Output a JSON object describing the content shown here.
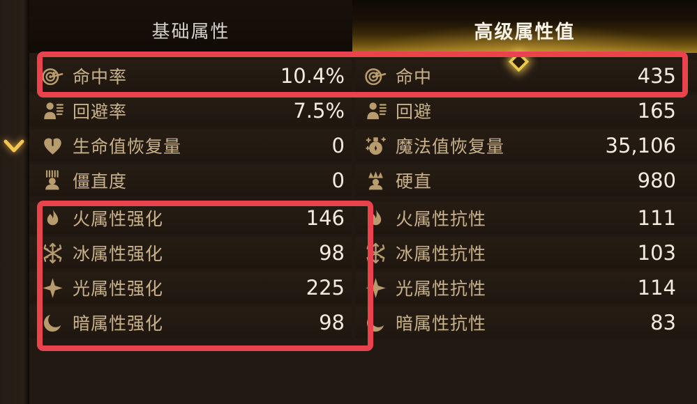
{
  "tabs": [
    {
      "label": "基础属性",
      "selected": false
    },
    {
      "label": "高级属性值",
      "selected": true
    }
  ],
  "stats_left": [
    {
      "icon": "target-icon",
      "label": "命中率",
      "value": "10.4%"
    },
    {
      "icon": "evasion-icon",
      "label": "回避率",
      "value": "7.5%"
    },
    {
      "icon": "heart-icon",
      "label": "生命值恢复量",
      "value": "0"
    },
    {
      "icon": "stun-icon",
      "label": "僵直度",
      "value": "0"
    },
    {
      "icon": "fire-icon",
      "label": "火属性强化",
      "value": "146"
    },
    {
      "icon": "snowflake-icon",
      "label": "冰属性强化",
      "value": "98"
    },
    {
      "icon": "light-star-icon",
      "label": "光属性强化",
      "value": "225"
    },
    {
      "icon": "moon-icon",
      "label": "暗属性强化",
      "value": "98"
    }
  ],
  "stats_right": [
    {
      "icon": "target-icon",
      "label": "命中",
      "value": "435"
    },
    {
      "icon": "evasion-icon",
      "label": "回避",
      "value": "165"
    },
    {
      "icon": "potion-icon",
      "label": "魔法值恢复量",
      "value": "35,106"
    },
    {
      "icon": "rigidity-icon",
      "label": "硬直",
      "value": "980"
    },
    {
      "icon": "fire-icon",
      "label": "火属性抗性",
      "value": "111"
    },
    {
      "icon": "snowflake-icon",
      "label": "冰属性抗性",
      "value": "103"
    },
    {
      "icon": "light-star-icon",
      "label": "光属性抗性",
      "value": "114"
    },
    {
      "icon": "moon-icon",
      "label": "暗属性抗性",
      "value": "83"
    }
  ],
  "colors": {
    "accent_gold": "#c9a96e",
    "tab_selected_gold": "#9a781f",
    "label_tan": "#c9b28b",
    "value_white": "#f2ece0",
    "annotation_red": "#e9444d",
    "background": "#221913"
  },
  "annotations": {
    "highlighted_rows": [
      "命中率 / 命中",
      "火属性强化 / 冰属性强化 / 光属性强化 / 暗属性强化"
    ]
  }
}
